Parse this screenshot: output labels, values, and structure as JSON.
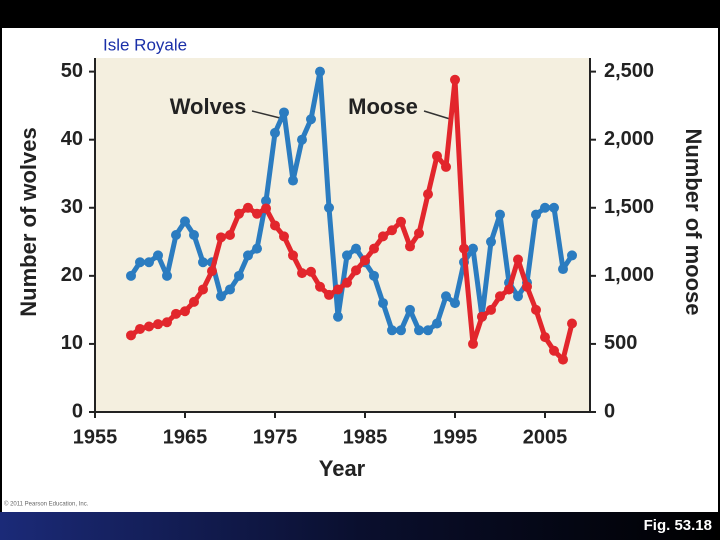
{
  "slide": {
    "label": "Isle Royale",
    "figure": "Fig. 53.18",
    "copyright": "© 2011 Pearson Education, Inc."
  },
  "chart_data": {
    "type": "line",
    "xlabel": "Year",
    "ylabel": "Number of wolves",
    "y2label": "Number of moose",
    "annotations": [
      "Wolves",
      "Moose"
    ],
    "x": [
      1959,
      1960,
      1961,
      1962,
      1963,
      1964,
      1965,
      1966,
      1967,
      1968,
      1969,
      1970,
      1971,
      1972,
      1973,
      1974,
      1975,
      1976,
      1977,
      1978,
      1979,
      1980,
      1981,
      1982,
      1983,
      1984,
      1985,
      1986,
      1987,
      1988,
      1989,
      1990,
      1991,
      1992,
      1993,
      1994,
      1995,
      1996,
      1997,
      1998,
      1999,
      2000,
      2001,
      2002,
      2003,
      2004,
      2005,
      2006,
      2007,
      2008
    ],
    "series": [
      {
        "name": "Wolves",
        "color": "#2b7cc0",
        "values": [
          20,
          22,
          22,
          23,
          20,
          26,
          28,
          26,
          22,
          22,
          17,
          18,
          20,
          23,
          24,
          31,
          41,
          44,
          34,
          40,
          43,
          50,
          30,
          14,
          23,
          24,
          22,
          20,
          16,
          12,
          12,
          15,
          12,
          12,
          13,
          17,
          16,
          22,
          24,
          14,
          25,
          29,
          19,
          17,
          19,
          29,
          30,
          30,
          21,
          23
        ]
      },
      {
        "name": "Moose",
        "color": "#e2262c",
        "axis": "y2",
        "values": [
          563,
          610,
          628,
          645,
          659,
          721,
          740,
          809,
          900,
          1035,
          1283,
          1300,
          1456,
          1500,
          1456,
          1495,
          1370,
          1290,
          1150,
          1020,
          1030,
          920,
          860,
          900,
          950,
          1040,
          1115,
          1200,
          1290,
          1335,
          1397,
          1216,
          1313,
          1600,
          1880,
          1800,
          2440,
          1200,
          500,
          700,
          750,
          850,
          900,
          1120,
          920,
          750,
          550,
          450,
          385,
          650
        ]
      }
    ],
    "xlim": [
      1955,
      2010
    ],
    "xticks": [
      1955,
      1965,
      1975,
      1985,
      1995,
      2005
    ],
    "ylim": [
      0,
      52
    ],
    "yticks": [
      0,
      10,
      20,
      30,
      40,
      50
    ],
    "y2lim": [
      0,
      2600
    ],
    "y2ticks": [
      0,
      500,
      {
        "value": 1000,
        "label": "1,000"
      },
      {
        "value": 1500,
        "label": "1,500"
      },
      {
        "value": 2000,
        "label": "2,000"
      },
      {
        "value": 2500,
        "label": "2,500"
      }
    ],
    "grid": false
  }
}
